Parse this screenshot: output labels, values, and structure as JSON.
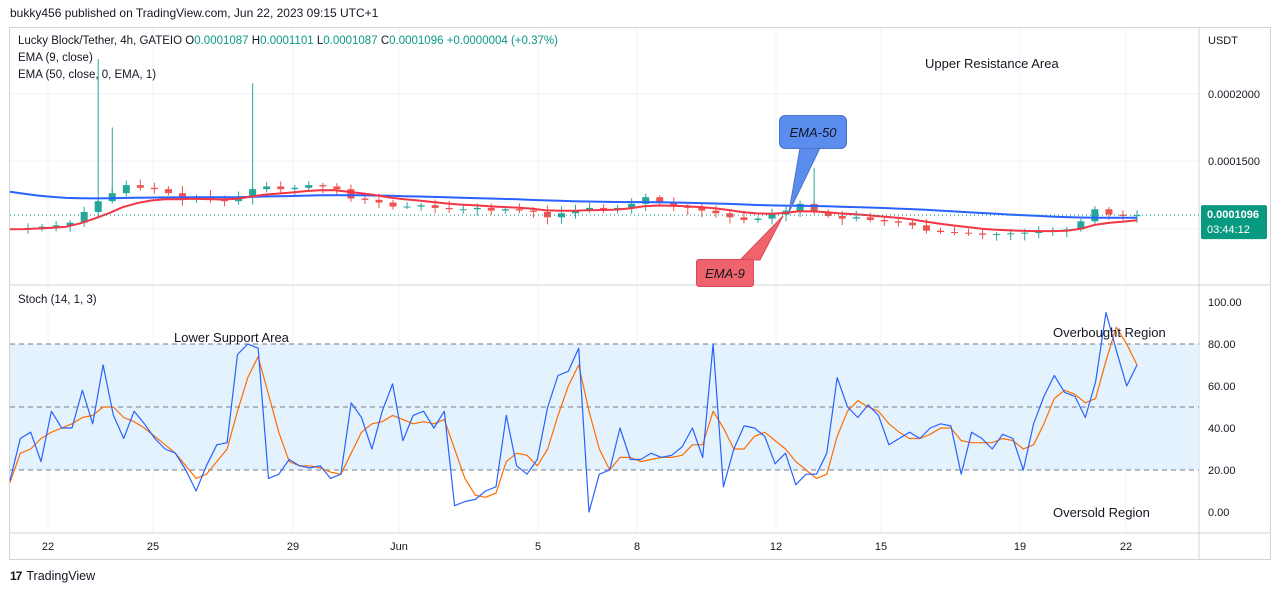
{
  "header": {
    "published": "bukky456 published on TradingView.com, Jun 22, 2023 09:15 UTC+1"
  },
  "legend": {
    "symbol": "Lucky Block/Tether, 4h, GATEIO",
    "o_label": "O",
    "o": "0.0001087",
    "h_label": "H",
    "h": "0.0001101",
    "l_label": "L",
    "l": "0.0001087",
    "c_label": "C",
    "c": "0.0001096",
    "change": "+0.0000004 (+0.37%)",
    "ema9": "EMA (9, close)",
    "ema50": "EMA (50, close, 0, EMA, 1)",
    "stoch": "Stoch (14, 1, 3)"
  },
  "price_axis": {
    "currency": "USDT",
    "ticks": [
      "0.0002000",
      "0.0001500"
    ],
    "last_price": "0.0001096",
    "countdown": "03:44:12"
  },
  "stoch_axis": {
    "ticks": [
      "100.00",
      "80.00",
      "60.00",
      "40.00",
      "20.00",
      "0.00"
    ]
  },
  "x_axis": {
    "ticks": [
      "22",
      "25",
      "29",
      "Jun",
      "5",
      "8",
      "12",
      "15",
      "19",
      "22"
    ]
  },
  "annotations": {
    "upper_resistance": "Upper Resistance Area",
    "lower_support": "Lower Support Area",
    "overbought": "Overbought Region",
    "oversold": "Oversold Region",
    "ema50_callout": "EMA-50",
    "ema9_callout": "EMA-9"
  },
  "footer": {
    "brand": "TradingView"
  },
  "colors": {
    "up": "#26a69a",
    "down": "#ef5350",
    "ema9": "#f23645",
    "ema50": "#2962ff",
    "stoch_k": "#2962ff",
    "stoch_d": "#ff6d00",
    "band_fill": "#e3f2fd",
    "last_price_bg": "#089981",
    "ema50_callout_bg": "#5b8def",
    "ema9_callout_bg": "#f0636d"
  },
  "chart_data": [
    {
      "type": "candlestick",
      "title": "Lucky Block/Tether, 4h, GATEIO",
      "x_ticks": [
        "22",
        "25",
        "29",
        "Jun",
        "5",
        "8",
        "12",
        "15",
        "19",
        "22"
      ],
      "ylim": [
        8e-05,
        0.00023
      ],
      "y_ticks": [
        0.0002,
        0.00015
      ],
      "last_price": 0.0001096,
      "ohlc_last": {
        "o": 0.0001087,
        "h": 0.0001101,
        "l": 0.0001087,
        "c": 0.0001096
      },
      "close_series": [
        9.95e-05,
        0.0001,
        0.000101,
        0.000102,
        0.000104,
        0.000112,
        0.00012,
        0.000126,
        0.000132,
        0.00013,
        0.000129,
        0.000126,
        0.000122,
        0.000123,
        0.000121,
        0.00012,
        0.000123,
        0.000129,
        0.000131,
        0.000129,
        0.00013,
        0.000132,
        0.000131,
        0.000129,
        0.000122,
        0.000121,
        0.000119,
        0.000116,
        0.000116,
        0.000117,
        0.000115,
        0.000114,
        0.000114,
        0.000115,
        0.000113,
        0.000114,
        0.000113,
        0.000112,
        0.000108,
        0.000111,
        0.000113,
        0.000115,
        0.000114,
        0.000115,
        0.000118,
        0.000123,
        0.000119,
        0.000116,
        0.000115,
        0.000113,
        0.000111,
        0.000108,
        0.000106,
        0.000107,
        0.00011,
        0.000113,
        0.000118,
        0.000112,
        0.000109,
        0.000107,
        0.000108,
        0.000106,
        0.000105,
        0.000104,
        0.000102,
        9.8e-05,
        9.7e-05,
        9.65e-05,
        9.6e-05,
        9.5e-05,
        9.55e-05,
        9.6e-05,
        9.65e-05,
        9.7e-05,
        9.8e-05,
        9.9e-05,
        0.000105,
        0.000114,
        0.00011,
        0.000109,
        0.0001096
      ],
      "series": [
        {
          "name": "EMA (9, close)",
          "values": [
            9.9e-05,
            9.92e-05,
            9.96e-05,
            0.0001002,
            0.000101,
            0.0001035,
            0.000107,
            0.000111,
            0.0001155,
            0.0001185,
            0.0001205,
            0.0001215,
            0.0001215,
            0.0001218,
            0.0001216,
            0.0001213,
            0.0001217,
            0.0001232,
            0.0001248,
            0.0001257,
            0.0001265,
            0.0001275,
            0.0001281,
            0.0001283,
            0.000127,
            0.0001258,
            0.0001244,
            0.0001227,
            0.0001214,
            0.0001205,
            0.0001194,
            0.0001183,
            0.0001175,
            0.000117,
            0.0001162,
            0.0001157,
            0.0001152,
            0.0001145,
            0.0001132,
            0.0001128,
            0.0001128,
            0.0001132,
            0.0001134,
            0.0001137,
            0.0001146,
            0.0001163,
            0.0001168,
            0.0001166,
            0.0001163,
            0.0001156,
            0.0001147,
            0.0001134,
            0.0001119,
            0.0001109,
            0.0001107,
            0.0001112,
            0.0001125,
            0.0001124,
            0.0001117,
            0.0001108,
            0.0001102,
            0.0001094,
            0.0001085,
            0.0001076,
            0.0001065,
            0.0001048,
            0.0001032,
            0.0001019,
            0.0001007,
            9.95e-05,
            9.87e-05,
            9.82e-05,
            9.78e-05,
            9.77e-05,
            9.77e-05,
            9.8e-05,
            9.94e-05,
            0.0001023,
            0.0001038,
            0.0001048,
            0.0001058
          ]
        },
        {
          "name": "EMA (50, close, 0, EMA, 1)",
          "values": [
            0.000127,
            0.0001255,
            0.0001242,
            0.0001232,
            0.0001225,
            0.0001222,
            0.0001221,
            0.0001222,
            0.0001224,
            0.0001226,
            0.0001227,
            0.0001228,
            0.0001228,
            0.0001229,
            0.0001229,
            0.0001229,
            0.000123,
            0.0001232,
            0.0001235,
            0.0001237,
            0.0001239,
            0.0001242,
            0.0001244,
            0.0001245,
            0.0001245,
            0.0001244,
            0.0001242,
            0.000124,
            0.0001237,
            0.0001235,
            0.0001232,
            0.0001229,
            0.0001226,
            0.0001223,
            0.000122,
            0.0001217,
            0.0001214,
            0.000121,
            0.0001206,
            0.0001203,
            0.00012,
            0.0001198,
            0.0001196,
            0.0001194,
            0.0001193,
            0.0001193,
            0.0001192,
            0.000119,
            0.0001188,
            0.0001186,
            0.0001183,
            0.000118,
            0.0001176,
            0.0001172,
            0.0001169,
            0.0001167,
            0.0001166,
            0.0001164,
            0.0001162,
            0.0001159,
            0.0001156,
            0.0001153,
            0.0001149,
            0.0001145,
            0.0001141,
            0.0001136,
            0.000113,
            0.0001124,
            0.0001118,
            0.0001112,
            0.0001106,
            0.00011,
            0.0001095,
            0.000109,
            0.0001085,
            0.0001081,
            0.0001078,
            0.0001077,
            0.0001076,
            0.0001076,
            0.0001077
          ]
        }
      ]
    },
    {
      "type": "line",
      "title": "Stoch (14, 1, 3)",
      "x_ticks": [
        "22",
        "25",
        "29",
        "Jun",
        "5",
        "8",
        "12",
        "15",
        "19",
        "22"
      ],
      "ylim": [
        0,
        100
      ],
      "y_ticks": [
        100,
        80,
        60,
        40,
        20,
        0
      ],
      "bands": {
        "upper": 80,
        "middle": 50,
        "lower": 20
      },
      "series": [
        {
          "name": "%K",
          "values": [
            15,
            35,
            38,
            24,
            48,
            40,
            40,
            58,
            42,
            70,
            46,
            35,
            48,
            42,
            35,
            30,
            28,
            20,
            10,
            22,
            32,
            33,
            75,
            80,
            78,
            16,
            18,
            25,
            22,
            21,
            22,
            16,
            18,
            52,
            45,
            30,
            48,
            61,
            34,
            46,
            48,
            40,
            48,
            3,
            5,
            6,
            10,
            12,
            46,
            22,
            18,
            25,
            50,
            65,
            67,
            78,
            0,
            18,
            20,
            40,
            25,
            25,
            28,
            26,
            27,
            31,
            40,
            26,
            80,
            12,
            30,
            41,
            40,
            36,
            23,
            28,
            13,
            18,
            18,
            28,
            64,
            50,
            45,
            51,
            46,
            32,
            35,
            38,
            35,
            40,
            42,
            41,
            18,
            38,
            35,
            30,
            37,
            35,
            20,
            42,
            55,
            65,
            57,
            55,
            45,
            62,
            95,
            77,
            60,
            70
          ]
        },
        {
          "name": "%D",
          "values": [
            14,
            28,
            30,
            35,
            38,
            40,
            42,
            45,
            46,
            50,
            50,
            45,
            43,
            40,
            36,
            32,
            28,
            22,
            16,
            18,
            24,
            30,
            48,
            64,
            74,
            56,
            38,
            24,
            22,
            22,
            21,
            19,
            18,
            28,
            38,
            42,
            43,
            46,
            44,
            42,
            43,
            42,
            44,
            30,
            16,
            8,
            7,
            9,
            24,
            28,
            27,
            22,
            30,
            46,
            60,
            70,
            48,
            30,
            20,
            26,
            26,
            24,
            25,
            26,
            26,
            27,
            32,
            32,
            48,
            40,
            30,
            30,
            36,
            38,
            34,
            30,
            24,
            20,
            16,
            18,
            36,
            48,
            53,
            50,
            48,
            42,
            38,
            35,
            35,
            37,
            40,
            40,
            34,
            33,
            33,
            33,
            35,
            34,
            30,
            32,
            42,
            54,
            58,
            56,
            52,
            54,
            72,
            88,
            80,
            70
          ]
        }
      ]
    }
  ]
}
